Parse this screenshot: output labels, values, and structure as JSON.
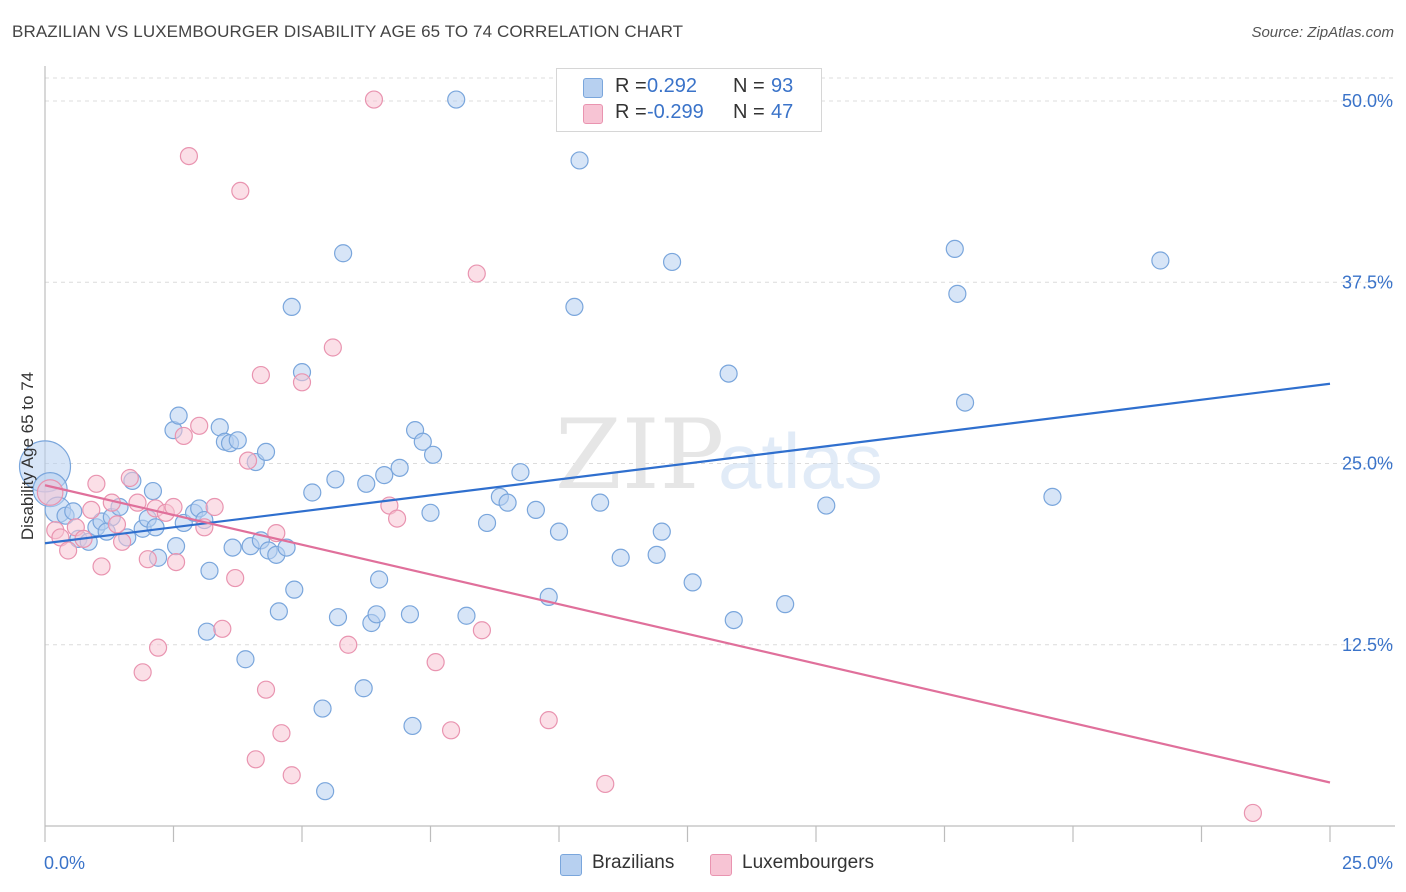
{
  "header": {
    "title": "BRAZILIAN VS LUXEMBOURGER DISABILITY AGE 65 TO 74 CORRELATION CHART",
    "source": "Source: ZipAtlas.com"
  },
  "watermark": {
    "zip": "ZIP",
    "atlas": "atlas"
  },
  "legend_top": {
    "rows": [
      {
        "r_label": "R =",
        "r_value": "0.292",
        "n_label": "N =",
        "n_value": "93"
      },
      {
        "r_label": "R =",
        "r_value": "-0.299",
        "n_label": "N =",
        "n_value": "47"
      }
    ]
  },
  "legend_bottom": {
    "items": [
      "Brazilians",
      "Luxembourgers"
    ]
  },
  "colors": {
    "blue_fill": "#b7d0f0",
    "blue_stroke": "#7aa6dc",
    "blue_line": "#2f6fce",
    "pink_fill": "#f7c4d4",
    "pink_stroke": "#e994b0",
    "pink_line": "#e0709b",
    "tick_label": "#3a73c9",
    "grid": "#dcdcdc"
  },
  "chart_data": {
    "type": "scatter",
    "title": "BRAZILIAN VS LUXEMBOURGER DISABILITY AGE 65 TO 74 CORRELATION CHART",
    "xlabel": "",
    "ylabel": "Disability Age 65 to 74",
    "xlim": [
      0,
      25
    ],
    "ylim": [
      0,
      52
    ],
    "x_tick_labels": [
      "0.0%",
      "25.0%"
    ],
    "y_ticks": [
      12.5,
      25.0,
      37.5,
      50.0
    ],
    "y_tick_labels": [
      "12.5%",
      "25.0%",
      "37.5%",
      "50.0%"
    ],
    "grid": true,
    "legend_placement": "top-center",
    "series": [
      {
        "name": "Brazilians",
        "r": 0.292,
        "n": 93,
        "trend": [
          [
            0,
            19.5
          ],
          [
            25,
            30.5
          ]
        ],
        "points": [
          [
            0.0,
            24.8,
            3
          ],
          [
            0.1,
            23.2,
            2
          ],
          [
            0.25,
            21.8,
            1.5
          ],
          [
            0.4,
            21.4,
            1
          ],
          [
            0.55,
            21.7,
            1
          ],
          [
            0.65,
            19.8,
            1
          ],
          [
            0.85,
            19.6,
            1
          ],
          [
            1.0,
            20.6,
            1
          ],
          [
            1.1,
            21.0,
            1
          ],
          [
            1.3,
            21.3,
            1
          ],
          [
            1.2,
            20.3,
            1
          ],
          [
            1.45,
            22.0,
            1
          ],
          [
            1.6,
            19.9,
            1
          ],
          [
            1.7,
            23.8,
            1
          ],
          [
            1.9,
            20.5,
            1
          ],
          [
            2.0,
            21.2,
            1
          ],
          [
            2.1,
            23.1,
            1
          ],
          [
            2.15,
            20.6,
            1
          ],
          [
            2.2,
            18.5,
            1
          ],
          [
            2.5,
            27.3,
            1
          ],
          [
            2.55,
            19.3,
            1
          ],
          [
            2.6,
            28.3,
            1
          ],
          [
            2.7,
            20.9,
            1
          ],
          [
            2.9,
            21.6,
            1
          ],
          [
            3.0,
            21.9,
            1
          ],
          [
            3.1,
            21.1,
            1
          ],
          [
            3.15,
            13.4,
            1
          ],
          [
            3.2,
            17.6,
            1
          ],
          [
            3.4,
            27.5,
            1
          ],
          [
            3.5,
            26.5,
            1
          ],
          [
            3.6,
            26.4,
            1
          ],
          [
            3.65,
            19.2,
            1
          ],
          [
            3.75,
            26.6,
            1
          ],
          [
            3.9,
            11.5,
            1
          ],
          [
            4.0,
            19.3,
            1
          ],
          [
            4.1,
            25.1,
            1
          ],
          [
            4.2,
            19.7,
            1
          ],
          [
            4.3,
            25.8,
            1
          ],
          [
            4.35,
            19.0,
            1
          ],
          [
            4.5,
            18.7,
            1
          ],
          [
            4.55,
            14.8,
            1
          ],
          [
            4.7,
            19.2,
            1
          ],
          [
            4.8,
            35.8,
            1
          ],
          [
            4.85,
            16.3,
            1
          ],
          [
            5.0,
            31.3,
            1
          ],
          [
            5.2,
            23.0,
            1
          ],
          [
            5.4,
            8.1,
            1
          ],
          [
            5.45,
            2.4,
            1
          ],
          [
            5.65,
            23.9,
            1
          ],
          [
            5.7,
            14.4,
            1
          ],
          [
            5.8,
            39.5,
            1
          ],
          [
            6.2,
            9.5,
            1
          ],
          [
            6.25,
            23.6,
            1
          ],
          [
            6.35,
            14.0,
            1
          ],
          [
            6.45,
            14.6,
            1
          ],
          [
            6.5,
            17.0,
            1
          ],
          [
            6.6,
            24.2,
            1
          ],
          [
            6.9,
            24.7,
            1
          ],
          [
            7.1,
            14.6,
            1
          ],
          [
            7.15,
            6.9,
            1
          ],
          [
            7.2,
            27.3,
            1
          ],
          [
            7.35,
            26.5,
            1
          ],
          [
            7.5,
            21.6,
            1
          ],
          [
            7.55,
            25.6,
            1
          ],
          [
            8.0,
            50.1,
            1
          ],
          [
            8.2,
            14.5,
            1
          ],
          [
            8.6,
            20.9,
            1
          ],
          [
            8.85,
            22.7,
            1
          ],
          [
            9.0,
            22.3,
            1
          ],
          [
            9.25,
            24.4,
            1
          ],
          [
            9.55,
            21.8,
            1
          ],
          [
            9.8,
            15.8,
            1
          ],
          [
            10.0,
            20.3,
            1
          ],
          [
            10.3,
            35.8,
            1
          ],
          [
            10.4,
            45.9,
            1
          ],
          [
            10.8,
            22.3,
            1
          ],
          [
            11.2,
            18.5,
            1
          ],
          [
            11.9,
            18.7,
            1
          ],
          [
            12.0,
            20.3,
            1
          ],
          [
            12.2,
            38.9,
            1
          ],
          [
            12.6,
            16.8,
            1
          ],
          [
            13.3,
            31.2,
            1
          ],
          [
            13.4,
            14.2,
            1
          ],
          [
            14.4,
            15.3,
            1
          ],
          [
            15.2,
            22.1,
            1
          ],
          [
            17.7,
            39.8,
            1
          ],
          [
            17.75,
            36.7,
            1
          ],
          [
            17.9,
            29.2,
            1
          ],
          [
            19.6,
            22.7,
            1
          ],
          [
            21.7,
            39.0,
            1
          ]
        ]
      },
      {
        "name": "Luxembourgers",
        "r": -0.299,
        "n": 47,
        "trend": [
          [
            0,
            23.5
          ],
          [
            25,
            3.0
          ]
        ],
        "points": [
          [
            0.1,
            23.0,
            1.5
          ],
          [
            0.2,
            20.4,
            1
          ],
          [
            0.3,
            19.9,
            1
          ],
          [
            0.45,
            19.0,
            1
          ],
          [
            0.6,
            20.6,
            1
          ],
          [
            0.75,
            19.8,
            1
          ],
          [
            0.9,
            21.8,
            1
          ],
          [
            1.0,
            23.6,
            1
          ],
          [
            1.1,
            17.9,
            1
          ],
          [
            1.3,
            22.3,
            1
          ],
          [
            1.4,
            20.8,
            1
          ],
          [
            1.5,
            19.6,
            1
          ],
          [
            1.65,
            24.0,
            1
          ],
          [
            1.8,
            22.3,
            1
          ],
          [
            1.9,
            10.6,
            1
          ],
          [
            2.0,
            18.4,
            1
          ],
          [
            2.15,
            21.9,
            1
          ],
          [
            2.2,
            12.3,
            1
          ],
          [
            2.35,
            21.6,
            1
          ],
          [
            2.5,
            22.0,
            1
          ],
          [
            2.55,
            18.2,
            1
          ],
          [
            2.7,
            26.9,
            1
          ],
          [
            2.8,
            46.2,
            1
          ],
          [
            3.0,
            27.6,
            1
          ],
          [
            3.1,
            20.6,
            1
          ],
          [
            3.3,
            22.0,
            1
          ],
          [
            3.45,
            13.6,
            1
          ],
          [
            3.7,
            17.1,
            1
          ],
          [
            3.8,
            43.8,
            1
          ],
          [
            3.95,
            25.2,
            1
          ],
          [
            4.1,
            4.6,
            1
          ],
          [
            4.2,
            31.1,
            1
          ],
          [
            4.3,
            9.4,
            1
          ],
          [
            4.5,
            20.2,
            1
          ],
          [
            4.6,
            6.4,
            1
          ],
          [
            4.8,
            3.5,
            1
          ],
          [
            5.0,
            30.6,
            1
          ],
          [
            5.6,
            33.0,
            1
          ],
          [
            5.9,
            12.5,
            1
          ],
          [
            6.4,
            50.1,
            1
          ],
          [
            6.7,
            22.1,
            1
          ],
          [
            6.85,
            21.2,
            1
          ],
          [
            7.6,
            11.3,
            1
          ],
          [
            7.9,
            6.6,
            1
          ],
          [
            8.4,
            38.1,
            1
          ],
          [
            8.5,
            13.5,
            1
          ],
          [
            9.8,
            7.3,
            1
          ],
          [
            10.9,
            2.9,
            1
          ],
          [
            23.5,
            0.9,
            1
          ]
        ]
      }
    ]
  }
}
